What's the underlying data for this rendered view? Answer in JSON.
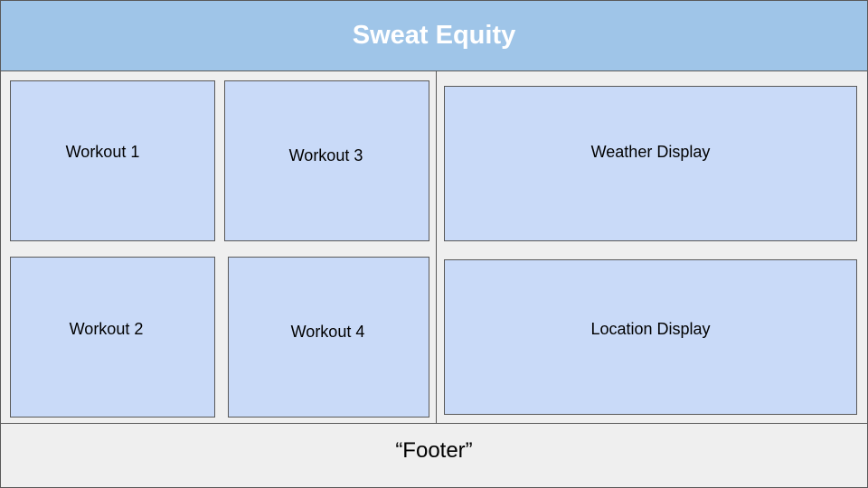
{
  "header": {
    "title": "Sweat Equity",
    "background": "#9fc5e8"
  },
  "workouts": [
    {
      "label": "Workout 1"
    },
    {
      "label": "Workout 2"
    },
    {
      "label": "Workout 3"
    },
    {
      "label": "Workout 4"
    }
  ],
  "displays": {
    "weather": {
      "label": "Weather Display"
    },
    "location": {
      "label": "Location Display"
    }
  },
  "footer": {
    "label": "“Footer”"
  },
  "colors": {
    "box_fill": "#c9daf8",
    "panel_fill": "#efefef",
    "border": "#595959",
    "title_text": "#ffffff"
  }
}
